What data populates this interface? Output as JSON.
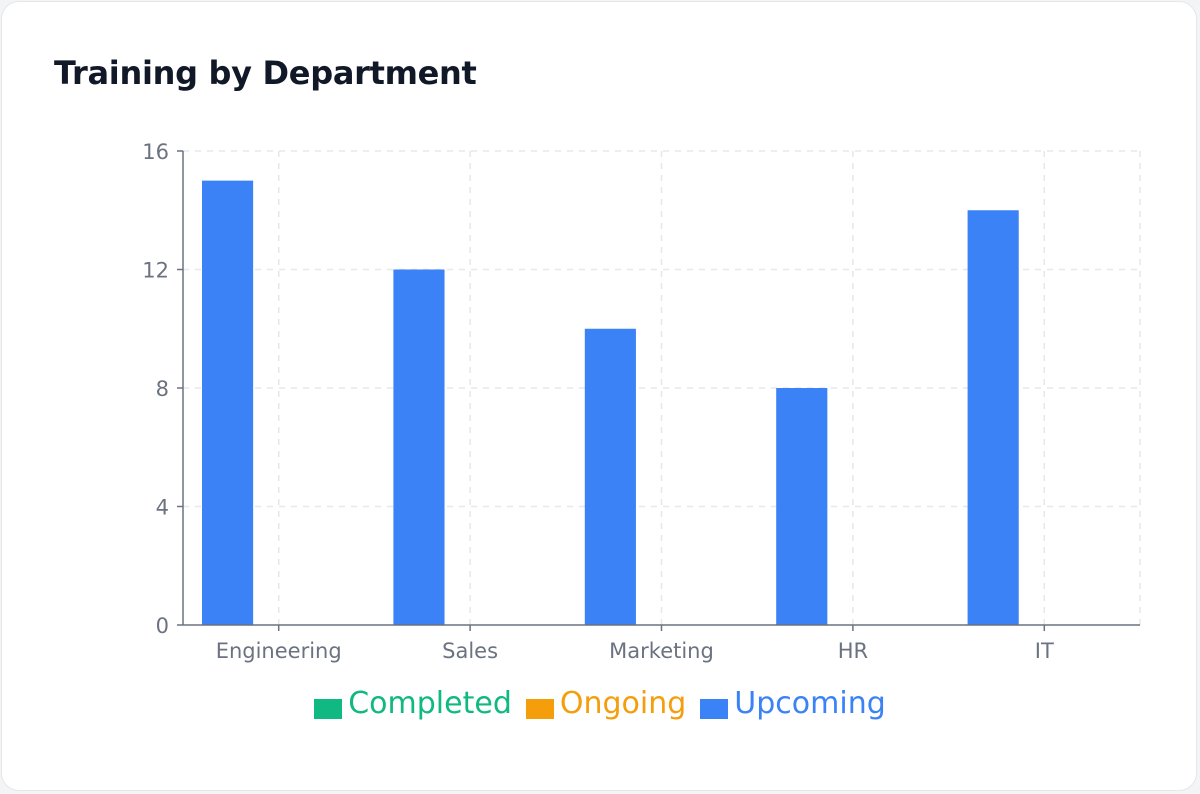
{
  "chart_data": {
    "type": "bar",
    "title": "Training by Department",
    "categories": [
      "Engineering",
      "Sales",
      "Marketing",
      "HR",
      "IT"
    ],
    "series": [
      {
        "name": "Completed",
        "color": "#10b981",
        "values": [
          0,
          0,
          0,
          0,
          0
        ]
      },
      {
        "name": "Ongoing",
        "color": "#f59e0b",
        "values": [
          0,
          0,
          0,
          0,
          0
        ]
      },
      {
        "name": "Upcoming",
        "color": "#3b82f6",
        "values": [
          15,
          12,
          10,
          8,
          14
        ]
      }
    ],
    "ylim": [
      0,
      16
    ],
    "yticks": [
      "0",
      "4",
      "8",
      "12",
      "16"
    ],
    "grid": true,
    "legend_position": "bottom"
  }
}
